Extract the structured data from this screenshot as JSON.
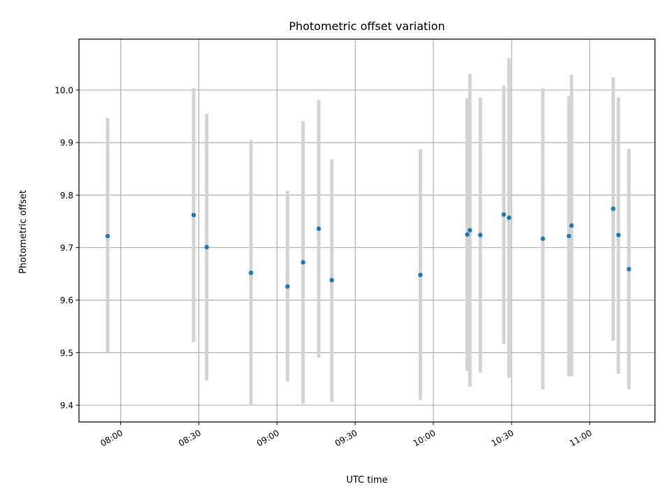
{
  "chart_data": {
    "type": "scatter",
    "title": "Photometric offset variation",
    "xlabel": "UTC time",
    "ylabel": "Photometric offset",
    "xlim": [
      "07:44",
      "11:25"
    ],
    "ylim": [
      9.368,
      10.097
    ],
    "grid": true,
    "x_ticks": [
      "08:00",
      "08:30",
      "09:00",
      "09:30",
      "10:00",
      "10:30",
      "11:00"
    ],
    "y_ticks": [
      "9.4",
      "9.5",
      "9.6",
      "9.7",
      "9.8",
      "9.9",
      "10.0"
    ],
    "colors": {
      "marker": "#1f77b4",
      "errorbar": "#d3d3d3",
      "grid": "#b0b0b0"
    },
    "points": [
      {
        "x": "07:55",
        "y": 9.722,
        "ylow": 9.5,
        "yhigh": 9.947
      },
      {
        "x": "08:28",
        "y": 9.762,
        "ylow": 9.52,
        "yhigh": 10.004
      },
      {
        "x": "08:33",
        "y": 9.701,
        "ylow": 9.447,
        "yhigh": 9.955
      },
      {
        "x": "08:50",
        "y": 9.652,
        "ylow": 9.4,
        "yhigh": 9.905
      },
      {
        "x": "09:04",
        "y": 9.626,
        "ylow": 9.445,
        "yhigh": 9.808
      },
      {
        "x": "09:10",
        "y": 9.672,
        "ylow": 9.403,
        "yhigh": 9.941
      },
      {
        "x": "09:16",
        "y": 9.736,
        "ylow": 9.49,
        "yhigh": 9.981
      },
      {
        "x": "09:21",
        "y": 9.638,
        "ylow": 9.406,
        "yhigh": 9.868
      },
      {
        "x": "09:55",
        "y": 9.648,
        "ylow": 9.41,
        "yhigh": 9.887
      },
      {
        "x": "10:13",
        "y": 9.725,
        "ylow": 9.465,
        "yhigh": 9.985
      },
      {
        "x": "10:14",
        "y": 9.733,
        "ylow": 9.435,
        "yhigh": 10.031
      },
      {
        "x": "10:18",
        "y": 9.724,
        "ylow": 9.462,
        "yhigh": 9.986
      },
      {
        "x": "10:27",
        "y": 9.763,
        "ylow": 9.517,
        "yhigh": 10.008
      },
      {
        "x": "10:29",
        "y": 9.757,
        "ylow": 9.452,
        "yhigh": 10.061
      },
      {
        "x": "10:42",
        "y": 9.717,
        "ylow": 9.43,
        "yhigh": 10.003
      },
      {
        "x": "10:52",
        "y": 9.722,
        "ylow": 9.455,
        "yhigh": 9.988
      },
      {
        "x": "10:53",
        "y": 9.742,
        "ylow": 9.455,
        "yhigh": 10.029
      },
      {
        "x": "11:09",
        "y": 9.774,
        "ylow": 9.523,
        "yhigh": 10.024
      },
      {
        "x": "11:11",
        "y": 9.724,
        "ylow": 9.46,
        "yhigh": 9.986
      },
      {
        "x": "11:15",
        "y": 9.659,
        "ylow": 9.43,
        "yhigh": 9.888
      }
    ]
  }
}
